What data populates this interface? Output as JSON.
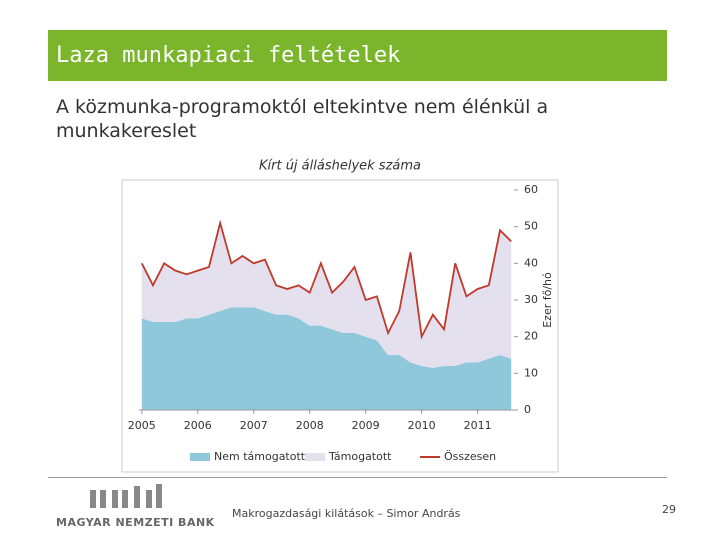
{
  "header": {
    "title": "Laza munkapiaci feltételek"
  },
  "subtitle": "A közmunka-programoktól eltekintve nem élénkül a munkakereslet",
  "chart_data": {
    "type": "stacked-area-line",
    "title": "Kírt új álláshelyek száma",
    "y_label": "Ezer fő/hó",
    "x": [
      2005,
      2005.2,
      2005.4,
      2005.6,
      2005.8,
      2006,
      2006.2,
      2006.4,
      2006.6,
      2006.8,
      2007,
      2007.2,
      2007.4,
      2007.6,
      2007.8,
      2008,
      2008.2,
      2008.4,
      2008.6,
      2008.8,
      2009,
      2009.2,
      2009.4,
      2009.6,
      2009.8,
      2010,
      2010.2,
      2010.4,
      2010.6,
      2010.8,
      2011,
      2011.2,
      2011.4,
      2011.6
    ],
    "series": [
      {
        "name": "Nem támogatott",
        "color": "#8fc8da",
        "kind": "area",
        "values": [
          25,
          24,
          24,
          24,
          25,
          25,
          26,
          27,
          28,
          28,
          28,
          27,
          26,
          26,
          25,
          23,
          23,
          22,
          21,
          21,
          20,
          19,
          15,
          15,
          13,
          12,
          11.5,
          12,
          12,
          13,
          13,
          14,
          15,
          14
        ]
      },
      {
        "name": "Támogatott",
        "color": "#e4e0ee",
        "kind": "area",
        "values": [
          15,
          10,
          16,
          14,
          12,
          13,
          13,
          24,
          12,
          14,
          12,
          14,
          8,
          7,
          9,
          9,
          17,
          10,
          14,
          18,
          10,
          12,
          6,
          12,
          30,
          8,
          14.5,
          10,
          28,
          18,
          20,
          20,
          34,
          32
        ]
      },
      {
        "name": "Összesen",
        "color": "#c0392b",
        "kind": "line",
        "values": [
          40,
          34,
          40,
          38,
          37,
          38,
          39,
          51,
          40,
          42,
          40,
          41,
          34,
          33,
          34,
          32,
          40,
          32,
          35,
          39,
          30,
          31,
          21,
          27,
          43,
          20,
          26,
          22,
          40,
          31,
          33,
          34,
          49,
          46
        ]
      }
    ],
    "xlim": [
      2004.95,
      2011.65
    ],
    "xticks": [
      2005,
      2006,
      2007,
      2008,
      2009,
      2010,
      2011
    ],
    "ylim": [
      0,
      60
    ],
    "yticks": [
      0,
      10,
      20,
      30,
      40,
      50,
      60
    ],
    "legend": "bottom"
  },
  "footer": {
    "bank": "MAGYAR NEMZETI BANK",
    "text": "Makrogazdasági kilátások – Simor András",
    "page": "29"
  }
}
